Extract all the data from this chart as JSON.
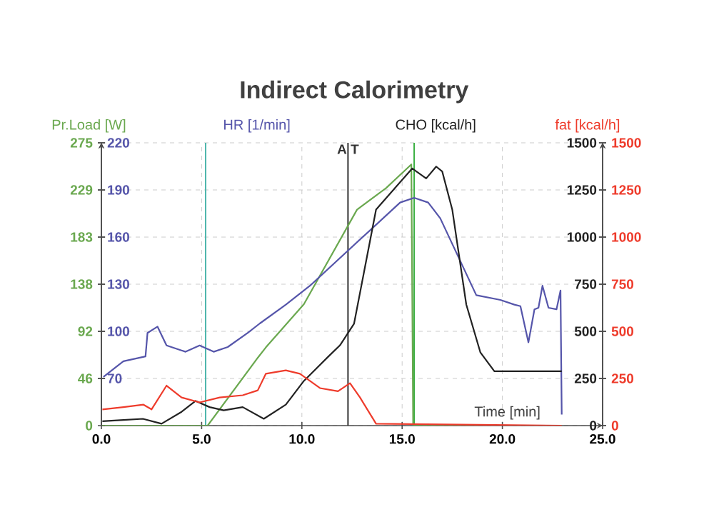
{
  "chart_data": {
    "type": "line",
    "title": "Indirect Calorimetry",
    "xlabel": "Time [min]",
    "ylabel": "Pr.Load [W]",
    "y2label": "HR [1/min]",
    "y3label": "CHO [kcal/h]",
    "annotations": [
      "fat [kcal/h]",
      "0",
      "250",
      "500",
      "750",
      "1000",
      "1250",
      "1500"
    ],
    "xlim": [
      0,
      25
    ],
    "xticks": [
      {
        "value": 0,
        "label": "0.0"
      },
      {
        "value": 5,
        "label": "5.0"
      },
      {
        "value": 10,
        "label": "10.0"
      },
      {
        "value": 15,
        "label": "15.0"
      },
      {
        "value": 20,
        "label": "20.0"
      },
      {
        "value": 25,
        "label": "25.0"
      }
    ],
    "ylim": [
      0,
      275
    ],
    "yticks": [
      0,
      {
        "value": 45.83,
        "label": "46"
      },
      {
        "value": 91.67,
        "label": "92"
      },
      {
        "value": 137.5,
        "label": "138"
      },
      {
        "value": 183.33,
        "label": "183"
      },
      {
        "value": 229.17,
        "label": "229"
      },
      275
    ],
    "y2lim": [
      40,
      220
    ],
    "y2ticks": [
      70,
      100,
      130,
      160,
      190,
      220
    ],
    "y3lim": [
      0,
      1500
    ],
    "y3ticks": [
      0,
      250,
      500,
      750,
      1000,
      1250,
      1500
    ],
    "grid": true,
    "marker": "none",
    "line_style": "solid",
    "ref_lines": [
      {
        "axis": "x",
        "value": 5.2,
        "color": "#4db6ac"
      },
      {
        "axis": "x",
        "value": 12.3,
        "label": "A T",
        "color": "#333333"
      },
      {
        "axis": "x",
        "value": 15.6,
        "color": "#3cb043"
      }
    ],
    "series": [
      {
        "color": "#6aa84f",
        "x": [
          0,
          5.3,
          7.8,
          8.2,
          10.1,
          12.75,
          14.2,
          15.46,
          15.55,
          22.96
        ],
        "values": [
          0,
          0,
          66,
          76,
          118,
          210,
          231,
          254,
          0,
          0
        ]
      },
      {
        "axis": "y2",
        "color": "#5555aa",
        "x": [
          0.1,
          1.1,
          2.2,
          2.3,
          2.8,
          3.25,
          4.2,
          4.9,
          5.6,
          6.3,
          7.3,
          7.9,
          9.2,
          10.4,
          14.9,
          15.6,
          16.3,
          16.9,
          18.7,
          19.9,
          20.6,
          20.9,
          21.3,
          21.6,
          21.8,
          22.0,
          22.3,
          22.7,
          22.9,
          22.96
        ],
        "values": [
          71,
          81,
          84,
          99,
          103,
          91,
          87,
          91,
          87,
          90,
          99,
          105,
          117,
          129,
          182,
          185,
          182,
          172,
          123,
          120,
          117,
          116,
          93,
          114,
          115,
          129,
          115,
          114,
          126,
          47
        ]
      },
      {
        "axis": "y3",
        "color": "#222222",
        "x": [
          0.05,
          1.1,
          2.07,
          3.0,
          4.0,
          4.7,
          5.4,
          6.1,
          7.05,
          8.1,
          9.2,
          10.1,
          11.3,
          11.9,
          12.6,
          13.7,
          15.5,
          16.2,
          16.7,
          17.0,
          17.5,
          18.2,
          18.9,
          19.6,
          22.96
        ],
        "values": [
          23,
          30,
          36,
          10,
          73,
          131,
          98,
          81,
          98,
          36,
          111,
          237,
          364,
          426,
          540,
          1146,
          1364,
          1311,
          1374,
          1348,
          1146,
          642,
          389,
          288,
          288
        ]
      },
      {
        "axis": "y3",
        "color": "#ee3b2b",
        "x": [
          0.05,
          1.1,
          2.1,
          2.5,
          3.25,
          4.0,
          4.9,
          5.9,
          7.05,
          7.8,
          8.2,
          9.2,
          9.9,
          10.9,
          11.8,
          12.4,
          12.9,
          13.7,
          22.96
        ],
        "values": [
          86,
          98,
          111,
          86,
          212,
          149,
          123,
          149,
          161,
          187,
          275,
          293,
          275,
          199,
          182,
          225,
          149,
          10,
          0
        ]
      }
    ]
  }
}
